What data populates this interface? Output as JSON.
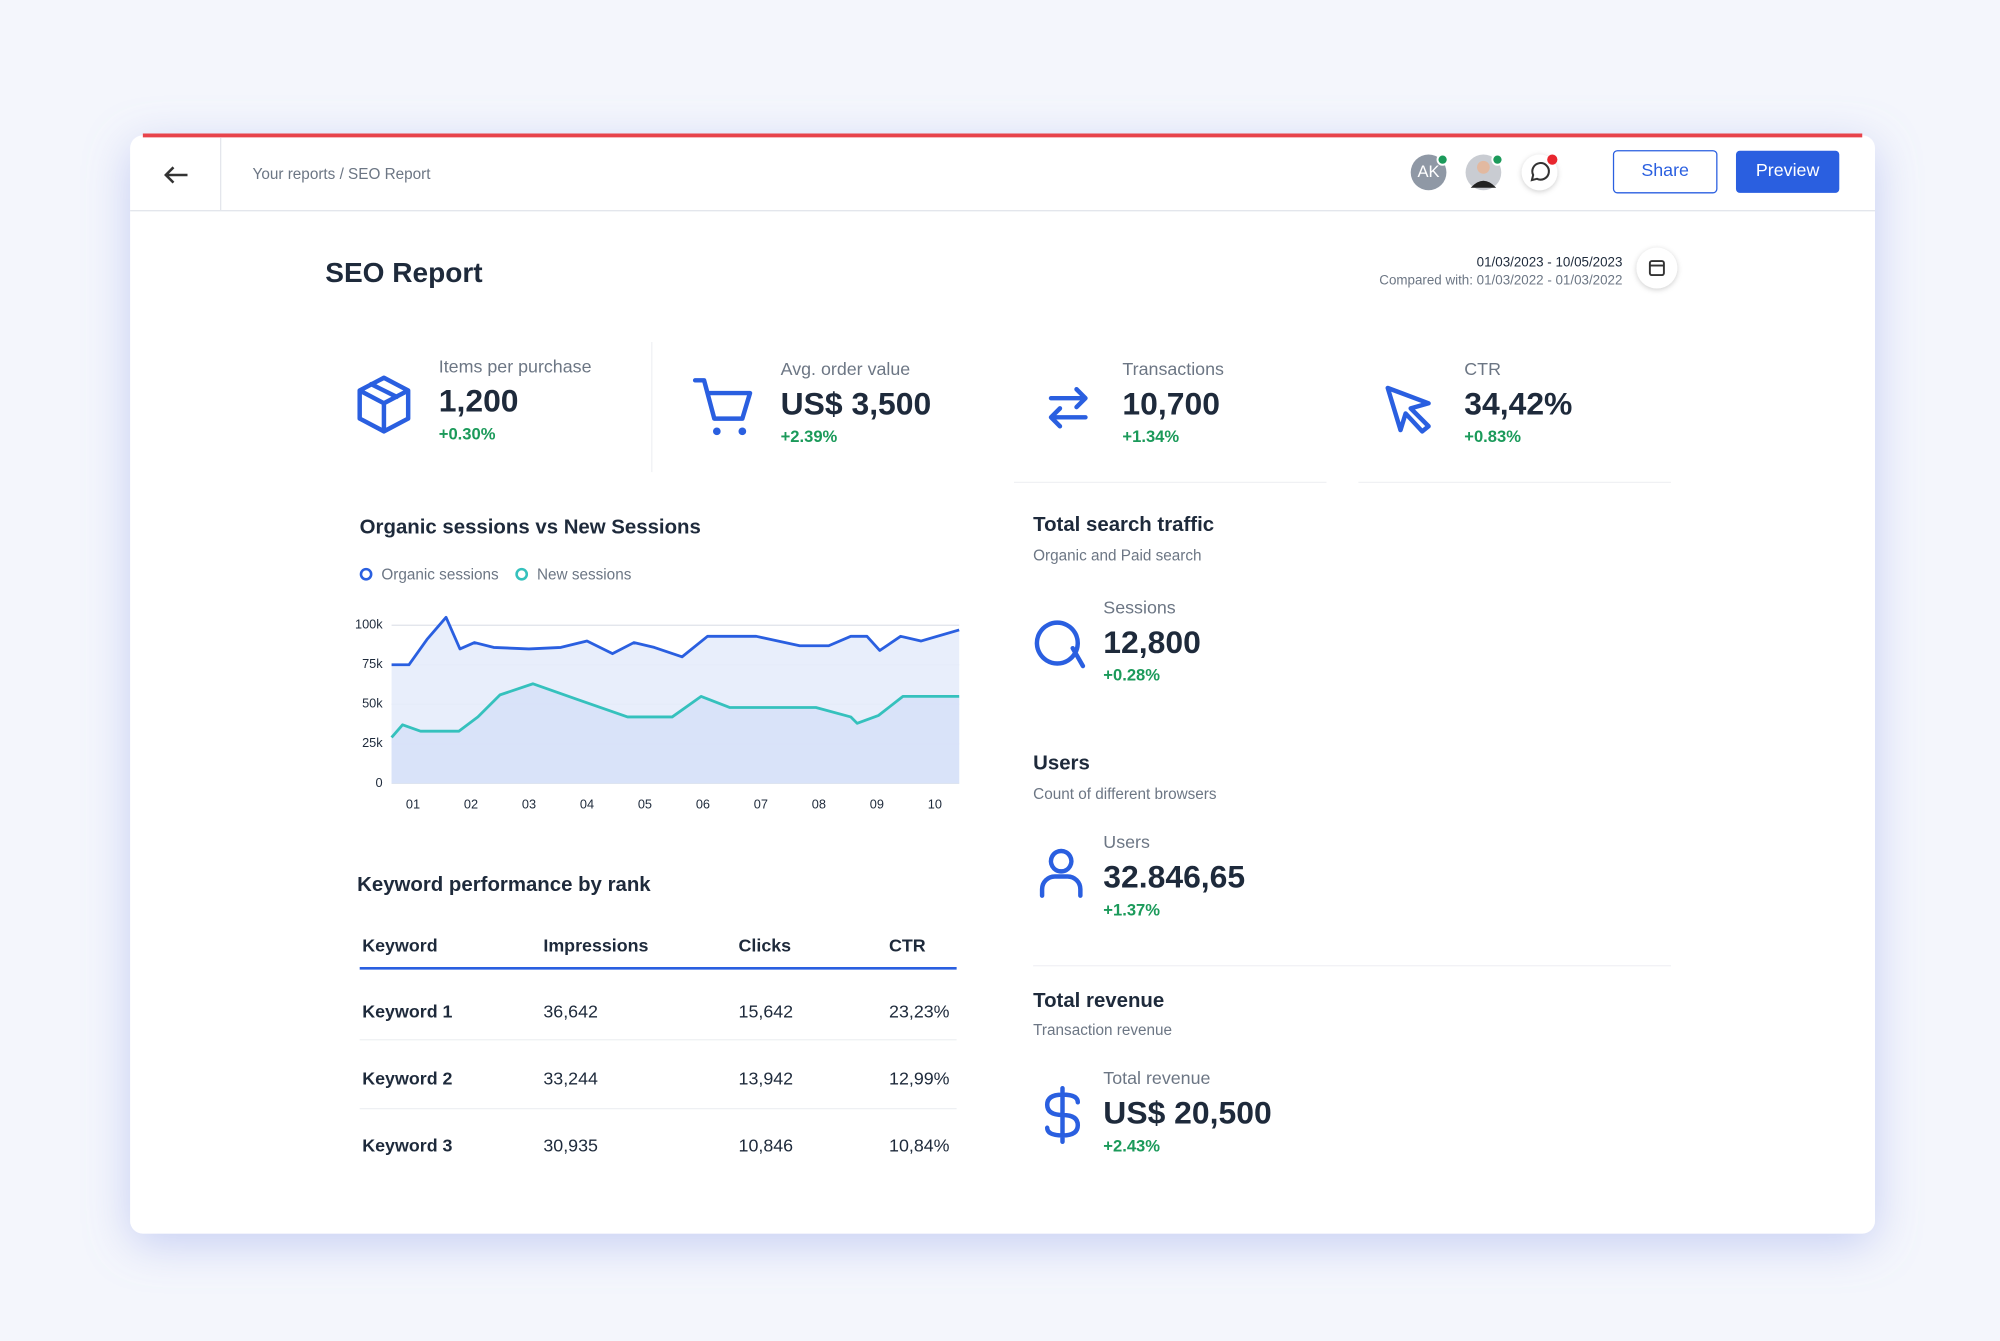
{
  "header": {
    "breadcrumb": "Your reports / SEO Report",
    "avatar": "AK",
    "share": "Share",
    "preview": "Preview"
  },
  "report": {
    "title": "SEO Report",
    "date_range": "01/03/2023 - 10/05/2023",
    "compared": "Compared with: 01/03/2022 - 01/03/2022"
  },
  "kpis": [
    {
      "label": "Items per purchase",
      "value": "1,200",
      "change": "+0.30%"
    },
    {
      "label": "Avg. order value",
      "value": "US$ 3,500",
      "change": "+2.39%"
    },
    {
      "label": "Transactions",
      "value": "10,700",
      "change": "+1.34%"
    },
    {
      "label": "CTR",
      "value": "34,42%",
      "change": "+0.83%"
    }
  ],
  "chart_data": {
    "type": "line",
    "title": "Organic sessions vs New Sessions",
    "series": [
      {
        "name": "Organic sessions",
        "color": "#2a5fe0",
        "x": [
          0.63,
          0.93,
          1.24,
          1.57,
          1.81,
          2.06,
          2.39,
          3.0,
          3.55,
          4.0,
          4.44,
          4.81,
          5.16,
          5.64,
          6.08,
          6.92,
          7.67,
          8.17,
          8.55,
          8.83,
          9.05,
          9.41,
          9.76,
          10.42
        ],
        "values": [
          75000,
          75000,
          91000,
          105000,
          85000,
          89000,
          86000,
          85000,
          86000,
          90000,
          82000,
          89000,
          86000,
          80000,
          93000,
          93000,
          87000,
          87000,
          93000,
          93000,
          84000,
          93000,
          90000,
          97000
        ]
      },
      {
        "name": "New sessions",
        "color": "#35c1bd",
        "x": [
          0.63,
          0.82,
          1.13,
          1.79,
          2.12,
          2.5,
          3.07,
          3.84,
          4.7,
          5.47,
          5.97,
          6.46,
          7.95,
          8.55,
          8.66,
          9.03,
          9.45,
          10.42
        ],
        "values": [
          29000,
          37000,
          33000,
          33000,
          42000,
          56000,
          63000,
          53000,
          42000,
          42000,
          55000,
          48000,
          48000,
          42000,
          38000,
          43000,
          55000,
          55000
        ]
      }
    ],
    "xlim": [
      0.63,
      10.42
    ],
    "xticks": [
      {
        "value": 1,
        "label": "01"
      },
      {
        "value": 2,
        "label": "02"
      },
      {
        "value": 3,
        "label": "03"
      },
      {
        "value": 4,
        "label": "04"
      },
      {
        "value": 5,
        "label": "05"
      },
      {
        "value": 6,
        "label": "06"
      },
      {
        "value": 7,
        "label": "07"
      },
      {
        "value": 8,
        "label": "08"
      },
      {
        "value": 9,
        "label": "09"
      },
      {
        "value": 10,
        "label": "10"
      }
    ],
    "ylim": [
      0,
      105000
    ],
    "yticks": [
      0,
      {
        "value": 25000,
        "label": "25k"
      },
      {
        "value": 50000,
        "label": "50k"
      },
      {
        "value": 75000,
        "label": "75k"
      },
      {
        "value": 100000,
        "label": "100k"
      }
    ],
    "grid": true
  },
  "table": {
    "title": "Keyword performance by rank",
    "columns": [
      "Keyword",
      "Impressions",
      "Clicks",
      "CTR"
    ],
    "rows": [
      [
        "Keyword 1",
        "36,642",
        "15,642",
        "23,23%"
      ],
      [
        "Keyword 2",
        "33,244",
        "13,942",
        "12,99%"
      ],
      [
        "Keyword 3",
        "30,935",
        "10,846",
        "10,84%"
      ]
    ]
  },
  "sections": [
    {
      "title": "Total search traffic",
      "subtitle": "Organic and Paid search",
      "label": "Sessions",
      "value": "12,800",
      "change": "+0.28%"
    },
    {
      "title": "Users",
      "subtitle": "Count of different browsers",
      "label": "Users",
      "value": "32.846,65",
      "change": "+1.37%"
    },
    {
      "title": "Total revenue",
      "subtitle": "Transaction revenue",
      "label": "Total revenue",
      "value": "US$ 20,500",
      "change": "+2.43%"
    }
  ]
}
